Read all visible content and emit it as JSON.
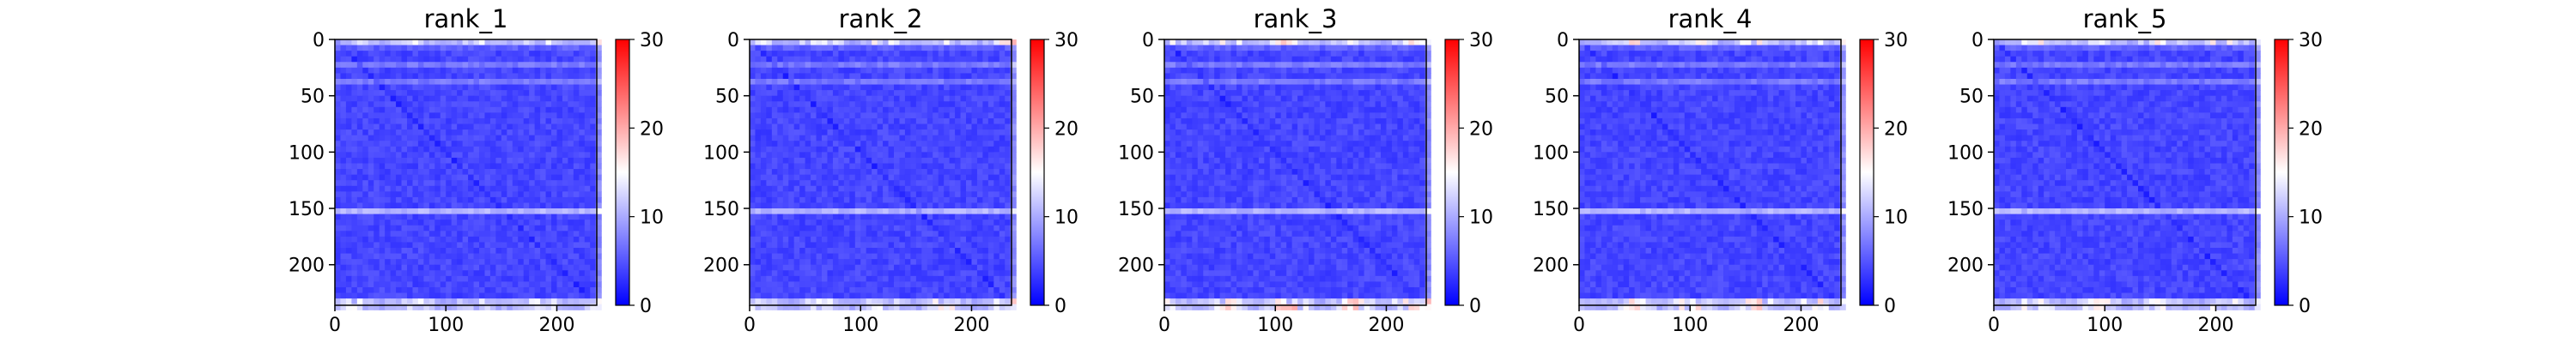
{
  "chart_data": {
    "type": "heatmap",
    "panels": [
      {
        "title": "rank_1",
        "edge_strength": 0.45
      },
      {
        "title": "rank_2",
        "edge_strength": 0.55
      },
      {
        "title": "rank_3",
        "edge_strength": 0.9
      },
      {
        "title": "rank_4",
        "edge_strength": 0.75
      },
      {
        "title": "rank_5",
        "edge_strength": 0.65
      }
    ],
    "matrix_size": 236,
    "xlim": [
      0,
      236
    ],
    "ylim": [
      236,
      0
    ],
    "x_ticks": [
      0,
      100,
      200
    ],
    "y_ticks": [
      0,
      50,
      100,
      150,
      200
    ],
    "colorbar": {
      "min": 0,
      "max": 30,
      "ticks": [
        0,
        10,
        20,
        30
      ],
      "colormap": "bwr",
      "colors": [
        "#0000ff",
        "#ffffff",
        "#ff0000"
      ]
    },
    "features": {
      "light_rows": [
        7,
        21,
        36,
        150
      ],
      "diagonal": true,
      "high_value_rows": [
        0,
        1,
        2,
        230,
        231,
        232,
        233,
        234,
        235
      ]
    }
  }
}
